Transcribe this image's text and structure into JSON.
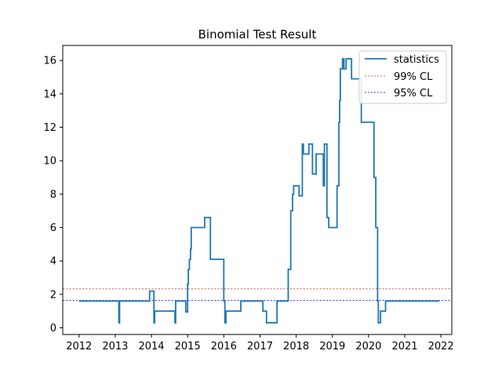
{
  "chart_data": {
    "type": "line",
    "title": "Binomial Test Result",
    "xlabel": "",
    "ylabel": "",
    "xlim": [
      2011.55,
      2022.3
    ],
    "ylim": [
      -0.4,
      16.9
    ],
    "x_ticks": [
      2012,
      2013,
      2014,
      2015,
      2016,
      2017,
      2018,
      2019,
      2020,
      2021,
      2022
    ],
    "x_tick_labels": [
      "2012",
      "2013",
      "2014",
      "2015",
      "2016",
      "2017",
      "2018",
      "2019",
      "2020",
      "2021",
      "2022"
    ],
    "y_ticks": [
      0,
      2,
      4,
      6,
      8,
      10,
      12,
      14,
      16
    ],
    "y_tick_labels": [
      "0",
      "2",
      "4",
      "6",
      "8",
      "10",
      "12",
      "14",
      "16"
    ],
    "grid": false,
    "legend_position": "top-right",
    "series": [
      {
        "name": "statistics",
        "color": "#1f77b4",
        "style": "solid-step",
        "points": [
          [
            2012.0,
            1.6
          ],
          [
            2013.1,
            1.6
          ],
          [
            2013.1,
            0.3
          ],
          [
            2013.12,
            0.3
          ],
          [
            2013.12,
            1.6
          ],
          [
            2013.95,
            1.6
          ],
          [
            2013.95,
            2.2
          ],
          [
            2014.07,
            2.2
          ],
          [
            2014.07,
            0.3
          ],
          [
            2014.09,
            0.3
          ],
          [
            2014.09,
            1.0
          ],
          [
            2014.65,
            1.0
          ],
          [
            2014.65,
            0.3
          ],
          [
            2014.67,
            0.3
          ],
          [
            2014.67,
            1.6
          ],
          [
            2014.95,
            1.6
          ],
          [
            2014.95,
            0.95
          ],
          [
            2015.0,
            0.95
          ],
          [
            2015.0,
            2.6
          ],
          [
            2015.02,
            2.6
          ],
          [
            2015.02,
            3.5
          ],
          [
            2015.05,
            3.5
          ],
          [
            2015.05,
            4.1
          ],
          [
            2015.08,
            4.1
          ],
          [
            2015.08,
            4.7
          ],
          [
            2015.1,
            4.7
          ],
          [
            2015.1,
            6.0
          ],
          [
            2015.47,
            6.0
          ],
          [
            2015.47,
            6.6
          ],
          [
            2015.63,
            6.6
          ],
          [
            2015.63,
            4.1
          ],
          [
            2016.0,
            4.1
          ],
          [
            2016.0,
            1.6
          ],
          [
            2016.03,
            1.6
          ],
          [
            2016.03,
            0.3
          ],
          [
            2016.06,
            0.3
          ],
          [
            2016.06,
            1.0
          ],
          [
            2016.47,
            1.0
          ],
          [
            2016.47,
            1.6
          ],
          [
            2017.08,
            1.6
          ],
          [
            2017.08,
            1.0
          ],
          [
            2017.18,
            1.0
          ],
          [
            2017.18,
            0.3
          ],
          [
            2017.47,
            0.3
          ],
          [
            2017.47,
            1.6
          ],
          [
            2017.78,
            1.6
          ],
          [
            2017.78,
            3.5
          ],
          [
            2017.85,
            3.5
          ],
          [
            2017.85,
            7.0
          ],
          [
            2017.9,
            7.0
          ],
          [
            2017.9,
            8.0
          ],
          [
            2017.93,
            8.0
          ],
          [
            2017.93,
            8.5
          ],
          [
            2018.08,
            8.5
          ],
          [
            2018.08,
            7.9
          ],
          [
            2018.17,
            7.9
          ],
          [
            2018.17,
            11.0
          ],
          [
            2018.2,
            11.0
          ],
          [
            2018.2,
            10.4
          ],
          [
            2018.35,
            10.4
          ],
          [
            2018.35,
            11.0
          ],
          [
            2018.45,
            11.0
          ],
          [
            2018.45,
            9.2
          ],
          [
            2018.55,
            9.2
          ],
          [
            2018.55,
            10.4
          ],
          [
            2018.75,
            10.4
          ],
          [
            2018.75,
            8.5
          ],
          [
            2018.78,
            8.5
          ],
          [
            2018.78,
            11.0
          ],
          [
            2018.85,
            11.0
          ],
          [
            2018.85,
            6.6
          ],
          [
            2018.9,
            6.6
          ],
          [
            2018.9,
            6.0
          ],
          [
            2019.13,
            6.0
          ],
          [
            2019.13,
            8.5
          ],
          [
            2019.18,
            8.5
          ],
          [
            2019.18,
            12.3
          ],
          [
            2019.2,
            12.3
          ],
          [
            2019.2,
            13.6
          ],
          [
            2019.22,
            13.6
          ],
          [
            2019.22,
            15.5
          ],
          [
            2019.28,
            15.5
          ],
          [
            2019.28,
            16.1
          ],
          [
            2019.32,
            16.1
          ],
          [
            2019.32,
            15.5
          ],
          [
            2019.38,
            15.5
          ],
          [
            2019.38,
            16.1
          ],
          [
            2019.53,
            16.1
          ],
          [
            2019.53,
            14.9
          ],
          [
            2019.8,
            14.9
          ],
          [
            2019.8,
            12.3
          ],
          [
            2020.15,
            12.3
          ],
          [
            2020.15,
            9.0
          ],
          [
            2020.2,
            9.0
          ],
          [
            2020.2,
            6.0
          ],
          [
            2020.25,
            6.0
          ],
          [
            2020.25,
            1.6
          ],
          [
            2020.27,
            1.6
          ],
          [
            2020.27,
            0.3
          ],
          [
            2020.33,
            0.3
          ],
          [
            2020.33,
            1.0
          ],
          [
            2020.47,
            1.0
          ],
          [
            2020.47,
            1.6
          ],
          [
            2021.95,
            1.6
          ]
        ]
      },
      {
        "name": "99% CL",
        "color": "#d62728",
        "style": "dashed",
        "y": 2.33
      },
      {
        "name": "95% CL",
        "color": "#0000cc",
        "style": "dashed",
        "y": 1.64
      }
    ]
  }
}
